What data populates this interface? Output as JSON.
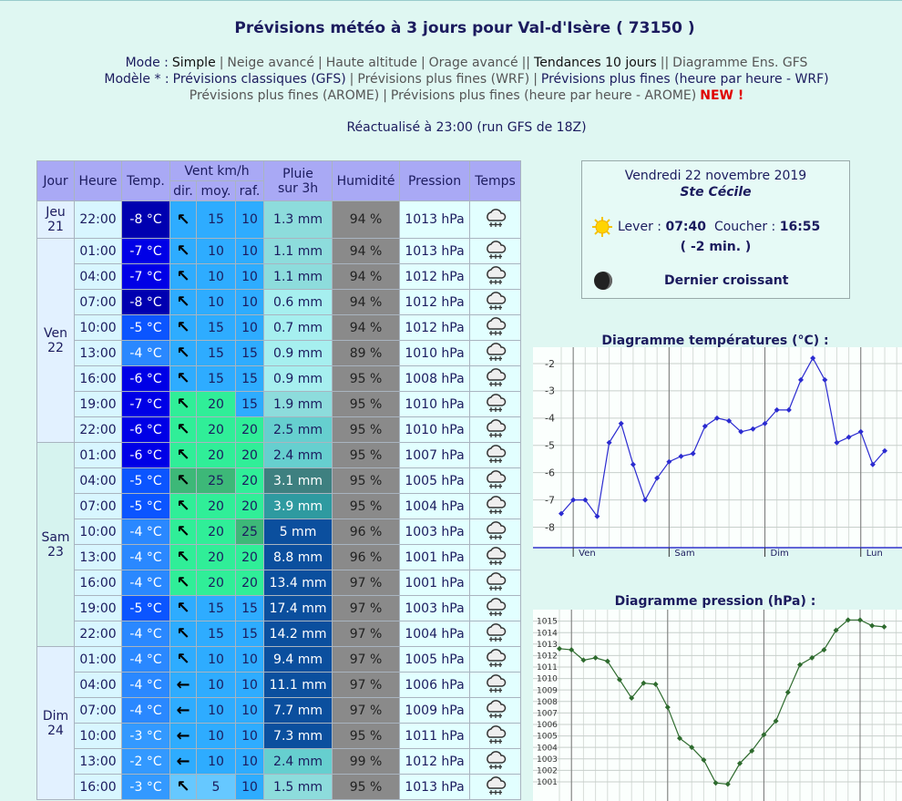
{
  "header": {
    "title": "Prévisions météo à 3 jours pour Val-d'Isère ( 73150 )",
    "nav": [
      [
        "Mode :",
        "Simple",
        "|",
        "Neige avancé",
        "|",
        "Haute altitude",
        "|",
        "Orage avancé",
        "||",
        "Tendances 10 jours",
        "||",
        "Diagramme Ens. GFS"
      ],
      [
        "Modèle * :",
        "Prévisions classiques (GFS)",
        "|",
        "Prévisions plus fines (WRF)",
        "|",
        "Prévisions plus fines (heure par heure - WRF)"
      ],
      [
        "Prévisions plus fines (AROME)",
        "|",
        "Prévisions plus fines (heure par heure - AROME)",
        "NEW !"
      ]
    ],
    "refresh": "Réactualisé à 23:00 (run GFS de 18Z)"
  },
  "table": {
    "headers": {
      "jour": "Jour",
      "heure": "Heure",
      "temp": "Temp.",
      "vent": "Vent km/h",
      "dir": "dir.",
      "moy": "moy.",
      "raf": "raf.",
      "pluie": "Pluie sur 3h",
      "humidite": "Humidité",
      "pression": "Pression",
      "temps": "Temps"
    },
    "days": [
      {
        "label": "Jeu 21",
        "rows": [
          [
            "22:00",
            "-8 °C",
            "↖",
            15,
            10,
            "1.3 mm",
            "94 %",
            "1013 hPa"
          ]
        ]
      },
      {
        "label": "Ven 22",
        "rows": [
          [
            "01:00",
            "-7 °C",
            "↖",
            10,
            10,
            "1.1 mm",
            "94 %",
            "1013 hPa"
          ],
          [
            "04:00",
            "-7 °C",
            "↖",
            10,
            10,
            "1.1 mm",
            "94 %",
            "1012 hPa"
          ],
          [
            "07:00",
            "-8 °C",
            "↖",
            10,
            10,
            "0.6 mm",
            "94 %",
            "1012 hPa"
          ],
          [
            "10:00",
            "-5 °C",
            "↖",
            15,
            10,
            "0.7 mm",
            "94 %",
            "1012 hPa"
          ],
          [
            "13:00",
            "-4 °C",
            "↖",
            15,
            15,
            "0.9 mm",
            "89 %",
            "1010 hPa"
          ],
          [
            "16:00",
            "-6 °C",
            "↖",
            15,
            15,
            "0.9 mm",
            "95 %",
            "1008 hPa"
          ],
          [
            "19:00",
            "-7 °C",
            "↖",
            20,
            15,
            "1.9 mm",
            "95 %",
            "1010 hPa"
          ],
          [
            "22:00",
            "-6 °C",
            "↖",
            20,
            20,
            "2.5 mm",
            "95 %",
            "1010 hPa"
          ]
        ]
      },
      {
        "label": "Sam 23",
        "rows": [
          [
            "01:00",
            "-6 °C",
            "↖",
            20,
            20,
            "2.4 mm",
            "95 %",
            "1007 hPa"
          ],
          [
            "04:00",
            "-5 °C",
            "↖",
            25,
            20,
            "3.1 mm",
            "95 %",
            "1005 hPa"
          ],
          [
            "07:00",
            "-5 °C",
            "↖",
            20,
            20,
            "3.9 mm",
            "95 %",
            "1004 hPa"
          ],
          [
            "10:00",
            "-4 °C",
            "↖",
            20,
            25,
            "5 mm",
            "96 %",
            "1003 hPa"
          ],
          [
            "13:00",
            "-4 °C",
            "↖",
            20,
            20,
            "8.8 mm",
            "96 %",
            "1001 hPa"
          ],
          [
            "16:00",
            "-4 °C",
            "↖",
            20,
            20,
            "13.4 mm",
            "97 %",
            "1001 hPa"
          ],
          [
            "19:00",
            "-5 °C",
            "↖",
            15,
            15,
            "17.4 mm",
            "97 %",
            "1003 hPa"
          ],
          [
            "22:00",
            "-4 °C",
            "↖",
            15,
            15,
            "14.2 mm",
            "97 %",
            "1004 hPa"
          ]
        ]
      },
      {
        "label": "Dim 24",
        "rows": [
          [
            "01:00",
            "-4 °C",
            "↖",
            10,
            10,
            "9.4 mm",
            "97 %",
            "1005 hPa"
          ],
          [
            "04:00",
            "-4 °C",
            "←",
            10,
            10,
            "11.1 mm",
            "97 %",
            "1006 hPa"
          ],
          [
            "07:00",
            "-4 °C",
            "←",
            10,
            10,
            "7.7 mm",
            "97 %",
            "1009 hPa"
          ],
          [
            "10:00",
            "-3 °C",
            "←",
            10,
            10,
            "7.3 mm",
            "95 %",
            "1011 hPa"
          ],
          [
            "13:00",
            "-2 °C",
            "←",
            10,
            10,
            "2.4 mm",
            "99 %",
            "1012 hPa"
          ],
          [
            "16:00",
            "-3 °C",
            "↖",
            5,
            10,
            "1.5 mm",
            "95 %",
            "1013 hPa"
          ]
        ]
      }
    ]
  },
  "sun": {
    "date": "Vendredi 22 novembre 2019",
    "saint": "Ste Cécile",
    "lever_label": "Lever :",
    "lever": "07:40",
    "coucher_label": "Coucher :",
    "coucher": "16:55",
    "delta": "( -2 min. )",
    "moon": "Dernier croissant"
  },
  "charts": [
    {
      "type": "line",
      "title": "Diagramme températures (°C) :",
      "color": "#2b2bd0",
      "x_labels": [
        "Ven",
        "Sam",
        "Dim",
        "Lun"
      ],
      "values": [
        -7.5,
        -7,
        -7,
        -7.6,
        -4.9,
        -4.2,
        -5.7,
        -7,
        -6.2,
        -5.6,
        -5.4,
        -5.3,
        -4.3,
        -4,
        -4.1,
        -4.5,
        -4.4,
        -4.2,
        -3.7,
        -3.7,
        -2.6,
        -1.8,
        -2.6,
        -4.9,
        -4.7,
        -4.5,
        -5.7,
        -5.2
      ],
      "ylim": [
        -8.75,
        -1.4
      ],
      "yticks": [
        -8,
        -7,
        -6,
        -5,
        -4,
        -3,
        -2
      ]
    },
    {
      "type": "line",
      "title": "Diagramme pression (hPa) :",
      "color": "#2e6b2e",
      "values": [
        1012.6,
        1012.5,
        1011.6,
        1011.8,
        1011.5,
        1009.9,
        1008.3,
        1009.6,
        1009.5,
        1007.5,
        1004.8,
        1004,
        1002.9,
        1000.9,
        1000.8,
        1002.6,
        1003.7,
        1005.1,
        1006.3,
        1008.8,
        1011.2,
        1011.8,
        1012.5,
        1014.2,
        1015.1,
        1015.1,
        1014.6,
        1014.5
      ],
      "ylim": [
        999.25,
        1016
      ],
      "yticks": [
        1001,
        1002,
        1003,
        1004,
        1005,
        1006,
        1007,
        1008,
        1009,
        1010,
        1011,
        1012,
        1013,
        1014,
        1015
      ]
    }
  ]
}
